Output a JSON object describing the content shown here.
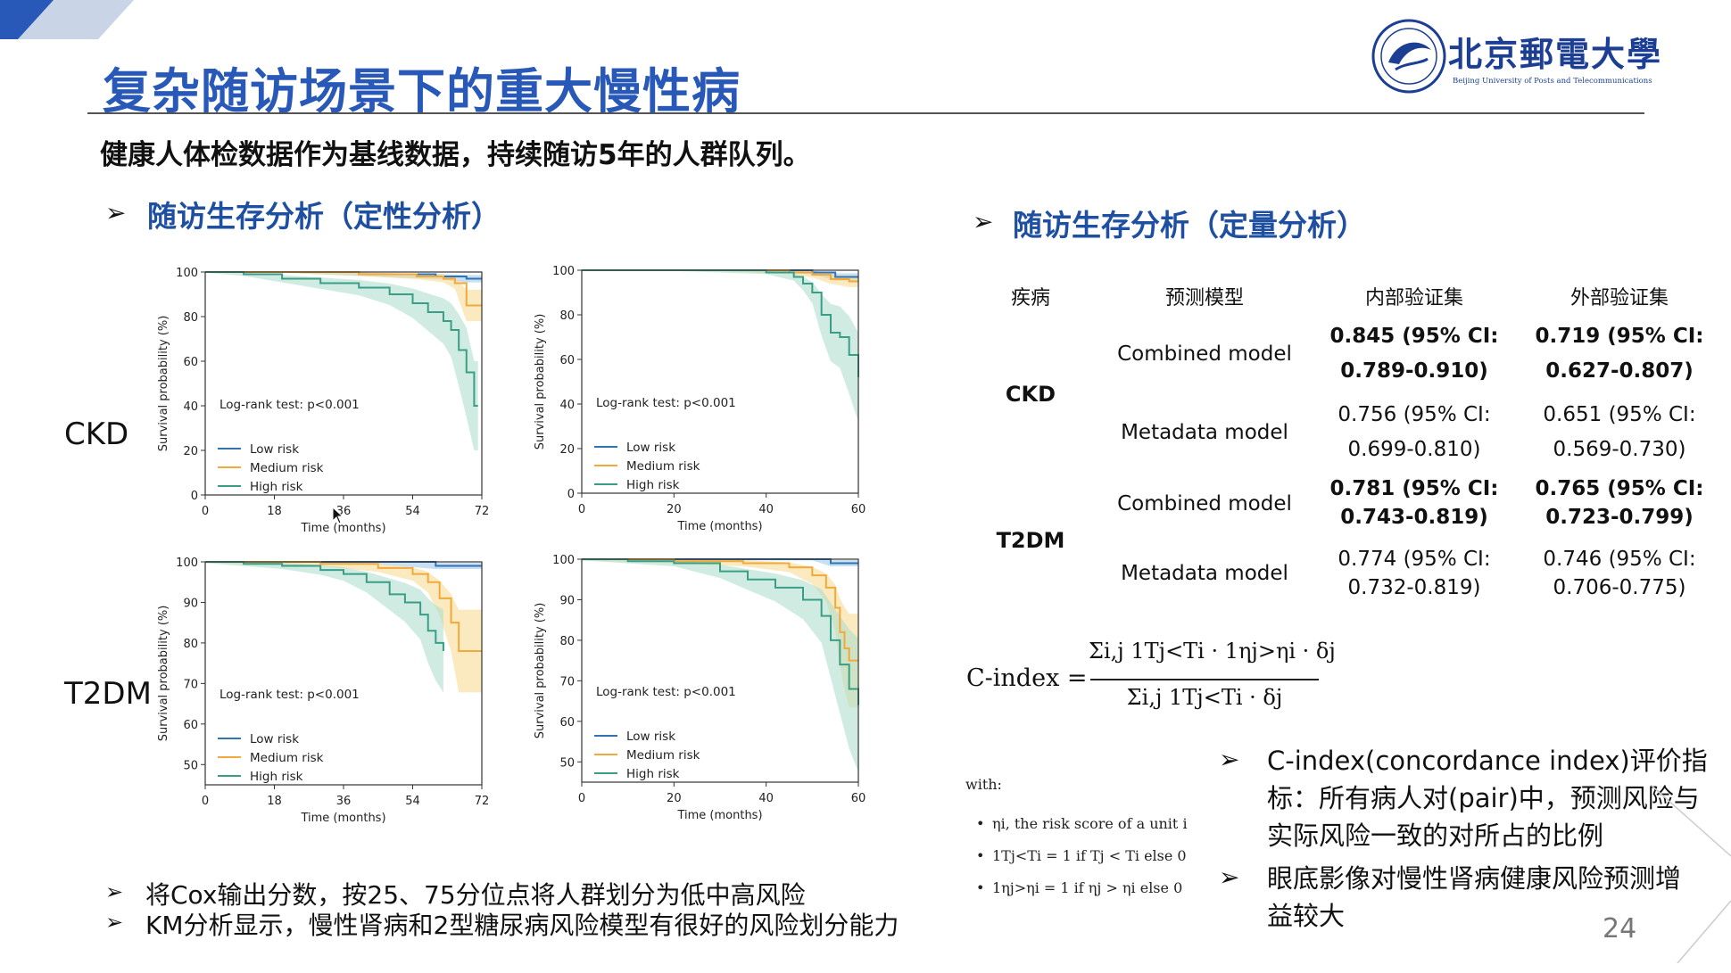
{
  "header": {
    "title": "复杂随访场景下的重大慢性病",
    "logo_cn": "北京郵電大學",
    "logo_en": "Beijing University of Posts and Telecommunications"
  },
  "intro": "健康人体检数据作为基线数据，持续随访5年的人群队列。",
  "sections": {
    "qualitative": "随访生存分析（定性分析）",
    "quantitative": "随访生存分析（定量分析）"
  },
  "row_labels": {
    "ckd": "CKD",
    "t2dm": "T2DM"
  },
  "colors": {
    "title": "#2858b8",
    "low": "#2f74b5",
    "medium": "#f2a93b",
    "high": "#3a9e86",
    "medium_band": "#f8d88a",
    "high_band": "#a9dccb",
    "low_band": "#9cc4e8"
  },
  "plot_text": {
    "ylabel": "Survival probability (%)",
    "xlabel": "Time (months)",
    "logrank": "Log-rank test: p<0.001",
    "legend": [
      "Low risk",
      "Medium risk",
      "High risk"
    ]
  },
  "chart_data": [
    {
      "type": "line",
      "id": "ckd-left",
      "xlabel": "Time (months)",
      "ylabel": "Survival probability (%)",
      "xlim": [
        0,
        72
      ],
      "ylim": [
        0,
        100
      ],
      "xticks": [
        0,
        18,
        36,
        54,
        72
      ],
      "yticks": [
        0,
        20,
        40,
        60,
        80,
        100
      ],
      "annotation": "Log-rank test: p<0.001",
      "legend_position": "lower-left",
      "series": [
        {
          "name": "Low risk",
          "x": [
            0,
            20,
            40,
            60,
            68,
            72
          ],
          "y": [
            100,
            100,
            99,
            98,
            97,
            97
          ]
        },
        {
          "name": "Medium risk",
          "x": [
            0,
            20,
            40,
            55,
            62,
            65,
            68,
            72
          ],
          "y": [
            100,
            100,
            99,
            98,
            97,
            95,
            85,
            85
          ]
        },
        {
          "name": "High risk",
          "x": [
            0,
            10,
            20,
            30,
            40,
            48,
            54,
            58,
            62,
            64,
            66,
            68,
            70,
            71
          ],
          "y": [
            100,
            99,
            97,
            95,
            93,
            90,
            86,
            82,
            78,
            74,
            65,
            55,
            40,
            40
          ]
        }
      ]
    },
    {
      "type": "line",
      "id": "ckd-right",
      "xlabel": "Time (months)",
      "ylabel": "Survival probability (%)",
      "xlim": [
        0,
        60
      ],
      "ylim": [
        0,
        100
      ],
      "xticks": [
        0,
        20,
        40,
        60
      ],
      "yticks": [
        0,
        20,
        40,
        60,
        80,
        100
      ],
      "annotation": "Log-rank test: p<0.001",
      "legend_position": "lower-left",
      "series": [
        {
          "name": "Low risk",
          "x": [
            0,
            30,
            50,
            55,
            60
          ],
          "y": [
            100,
            100,
            99,
            97,
            97
          ]
        },
        {
          "name": "Medium risk",
          "x": [
            0,
            30,
            45,
            50,
            54,
            58,
            60
          ],
          "y": [
            100,
            100,
            99,
            98,
            96,
            95,
            95
          ]
        },
        {
          "name": "High risk",
          "x": [
            0,
            20,
            40,
            46,
            48,
            50,
            52,
            54,
            56,
            58,
            60
          ],
          "y": [
            100,
            100,
            99,
            97,
            94,
            90,
            80,
            72,
            70,
            62,
            52
          ]
        }
      ]
    },
    {
      "type": "line",
      "id": "t2dm-left",
      "xlabel": "Time (months)",
      "ylabel": "Survival probability (%)",
      "xlim": [
        0,
        72
      ],
      "ylim": [
        45,
        100
      ],
      "xticks": [
        0,
        18,
        36,
        54,
        72
      ],
      "yticks": [
        50,
        60,
        70,
        80,
        90,
        100
      ],
      "annotation": "Log-rank test: p<0.001",
      "legend_position": "lower-left",
      "series": [
        {
          "name": "Low risk",
          "x": [
            0,
            40,
            60,
            72
          ],
          "y": [
            100,
            100,
            99,
            99
          ]
        },
        {
          "name": "Medium risk",
          "x": [
            0,
            30,
            45,
            54,
            58,
            61,
            64,
            66,
            72
          ],
          "y": [
            100,
            99.5,
            98.5,
            97,
            95,
            91,
            85,
            78,
            78
          ]
        },
        {
          "name": "High risk",
          "x": [
            0,
            10,
            20,
            30,
            36,
            42,
            48,
            52,
            56,
            58,
            60,
            62
          ],
          "y": [
            100,
            99.5,
            99,
            98,
            97,
            95,
            92,
            90,
            87,
            83,
            80,
            78
          ]
        }
      ]
    },
    {
      "type": "line",
      "id": "t2dm-right",
      "xlabel": "Time (months)",
      "ylabel": "Survival probability (%)",
      "xlim": [
        0,
        60
      ],
      "ylim": [
        45,
        100
      ],
      "xticks": [
        0,
        20,
        40,
        60
      ],
      "yticks": [
        50,
        60,
        70,
        80,
        90,
        100
      ],
      "annotation": "Log-rank test: p<0.001",
      "legend_position": "lower-left",
      "series": [
        {
          "name": "Low risk",
          "x": [
            0,
            50,
            54,
            60
          ],
          "y": [
            100,
            100,
            99,
            99
          ]
        },
        {
          "name": "Medium risk",
          "x": [
            0,
            20,
            35,
            45,
            50,
            53,
            55,
            56,
            57,
            58,
            60
          ],
          "y": [
            100,
            99.5,
            99,
            98,
            96,
            93,
            88,
            82,
            78,
            75,
            75
          ]
        },
        {
          "name": "High risk",
          "x": [
            0,
            10,
            20,
            30,
            36,
            42,
            48,
            52,
            54,
            56,
            58,
            60
          ],
          "y": [
            100,
            99.5,
            99,
            97,
            95,
            93,
            90,
            86,
            80,
            74,
            68,
            64
          ]
        }
      ]
    },
    {
      "type": "table",
      "id": "c-index-table",
      "columns": [
        "疾病",
        "预测模型",
        "内部验证集",
        "外部验证集"
      ],
      "rows": [
        {
          "disease": "CKD",
          "model": "Combined model",
          "internal": [
            "0.845 (95% CI:",
            "0.789-0.910)"
          ],
          "external": [
            "0.719 (95% CI:",
            "0.627-0.807)"
          ],
          "bold": true
        },
        {
          "disease": "",
          "model": "Metadata model",
          "internal": [
            "0.756 (95% CI:",
            "0.699-0.810)"
          ],
          "external": [
            "0.651 (95% CI:",
            "0.569-0.730)"
          ],
          "bold": false
        },
        {
          "disease": "T2DM",
          "model": "Combined model",
          "internal": [
            "0.781 (95% CI:",
            "0.743-0.819)"
          ],
          "external": [
            "0.765 (95% CI:",
            "0.723-0.799)"
          ],
          "bold": true
        },
        {
          "disease": "",
          "model": "Metadata model",
          "internal": [
            "0.774 (95% CI:",
            "0.732-0.819)"
          ],
          "external": [
            "0.746 (95% CI:",
            "0.706-0.775)"
          ],
          "bold": false
        }
      ]
    }
  ],
  "formula": {
    "lhs": "C-index =",
    "numerator": "Σi,j 1Tj<Ti · 1ηj>ηi · δj",
    "denominator": "Σi,j 1Tj<Ti · δj",
    "with": "with:",
    "bullets": [
      "ηi, the risk score of a unit i",
      "1Tj<Ti = 1 if Tj < Ti else 0",
      "1ηj>ηi = 1 if ηj > ηi else 0"
    ]
  },
  "notes_left": [
    "将Cox输出分数，按25、75分位点将人群划分为低中高风险",
    "KM分析显示，慢性肾病和2型糖尿病风险模型有很好的风险划分能力"
  ],
  "notes_right": [
    [
      "C-index(concordance index)评价指",
      "标：所有病人对(pair)中，预测风险与",
      "实际风险一致的对所占的比例"
    ],
    [
      "眼底影像对慢性肾病健康风险预测增",
      "益较大"
    ]
  ],
  "page_number": "24"
}
